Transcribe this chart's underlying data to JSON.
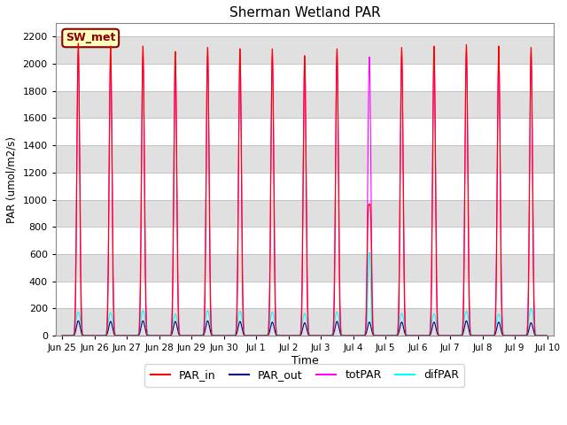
{
  "title": "Sherman Wetland PAR",
  "xlabel": "Time",
  "ylabel": "PAR (umol/m2/s)",
  "ylim": [
    0,
    2300
  ],
  "yticks": [
    0,
    200,
    400,
    600,
    800,
    1000,
    1200,
    1400,
    1600,
    1800,
    2000,
    2200
  ],
  "colors": {
    "PAR_in": "#ff0000",
    "PAR_out": "#00008b",
    "totPAR": "#ff00ff",
    "difPAR": "#00ffff"
  },
  "legend_label": "SW_met",
  "legend_box_color": "#ffffc0",
  "legend_box_edge": "#8b0000",
  "background_stripe_color": "#e0e0e0",
  "tick_labels": [
    "Jun 25",
    "Jun 26",
    "Jun 27",
    "Jun 28",
    "Jun 29",
    "Jun 30",
    "Jul 1",
    "Jul 2",
    "Jul 3",
    "Jul 4",
    "Jul 5",
    "Jul 6",
    "Jul 7",
    "Jul 8",
    "Jul 9",
    "Jul 10"
  ],
  "figsize": [
    6.4,
    4.8
  ],
  "dpi": 100
}
